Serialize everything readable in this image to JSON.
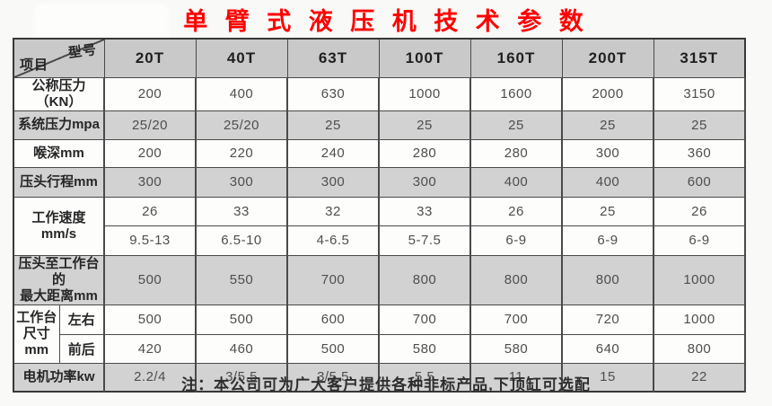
{
  "title": "单 臂 式 液 压 机 技 术 参 数",
  "colors": {
    "title_red": "#fe0000",
    "header_bg": "#c9c9c9",
    "shaded_row_bg": "#d2d2d2",
    "border": "#4a4a4a"
  },
  "table": {
    "corner": {
      "top_right": "型号",
      "bottom_left": "项目"
    },
    "columns": [
      "20T",
      "40T",
      "63T",
      "100T",
      "160T",
      "200T",
      "315T"
    ],
    "groups": [
      {
        "label_lines": [
          "公称压力（KN）"
        ],
        "rows": [
          [
            "200",
            "400",
            "630",
            "1000",
            "1600",
            "2000",
            "3150"
          ]
        ]
      },
      {
        "label_lines": [
          "系统压力mpa"
        ],
        "rows": [
          [
            "25/20",
            "25/20",
            "25",
            "25",
            "25",
            "25",
            "25"
          ]
        ]
      },
      {
        "label_lines": [
          "喉深mm"
        ],
        "rows": [
          [
            "200",
            "220",
            "240",
            "280",
            "280",
            "300",
            "360"
          ]
        ]
      },
      {
        "label_lines": [
          "压头行程mm"
        ],
        "rows": [
          [
            "300",
            "300",
            "300",
            "300",
            "400",
            "400",
            "600"
          ]
        ]
      },
      {
        "label_lines": [
          "工作速度",
          "mm/s"
        ],
        "rows": [
          [
            "26",
            "33",
            "32",
            "33",
            "26",
            "25",
            "26"
          ],
          [
            "9.5-13",
            "6.5-10",
            "4-6.5",
            "5-7.5",
            "6-9",
            "6-9",
            "6-9"
          ]
        ]
      },
      {
        "label_lines": [
          "压头至工作台的",
          "最大距离mm"
        ],
        "rows": [
          [
            "500",
            "550",
            "700",
            "800",
            "800",
            "800",
            "1000"
          ]
        ]
      },
      {
        "label_lines": [
          "工作台",
          "尺寸",
          "mm"
        ],
        "sublabels": [
          "左右",
          "前后"
        ],
        "rows": [
          [
            "500",
            "500",
            "600",
            "700",
            "700",
            "720",
            "1000"
          ],
          [
            "420",
            "460",
            "500",
            "580",
            "580",
            "640",
            "800"
          ]
        ]
      },
      {
        "label_lines": [
          "电机功率kw"
        ],
        "rows": [
          [
            "2.2/4",
            "3/5.5",
            "3/5.5",
            "5.5",
            "11",
            "15",
            "22"
          ]
        ]
      }
    ]
  },
  "note": "注：本公司可为广大客户提供各种非标产品,下顶缸可选配"
}
